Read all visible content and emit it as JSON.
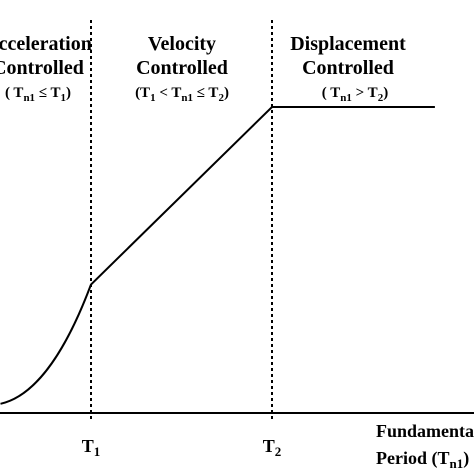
{
  "chart_data": {
    "type": "line",
    "title": "",
    "xlabel": "",
    "ylabel": "",
    "x_axis_label_lines": [
      "Fundamental",
      "Period (T"
    ],
    "x_axis_label_subscript": "n1",
    "x_axis_label_close": ")",
    "regions": [
      {
        "title_lines": [
          "Acceleration",
          "Controlled"
        ],
        "condition": {
          "open": "( T",
          "sub1": "n1",
          "rel": " ≤ T",
          "sub2": "1",
          "close": ")"
        }
      },
      {
        "title_lines": [
          "Velocity",
          "Controlled"
        ],
        "condition": {
          "open": "(T",
          "sub1": "1",
          "rel": " < T",
          "sub2": "n1",
          "rel2": " ≤ T",
          "sub3": "2",
          "close": ")"
        }
      },
      {
        "title_lines": [
          "Displacement",
          "Controlled"
        ],
        "condition": {
          "open": "( T",
          "sub1": "n1",
          "rel": " > T",
          "sub2": "2",
          "close": ")"
        }
      }
    ],
    "ticks": [
      {
        "main": "T",
        "sub": "1",
        "x": 1
      },
      {
        "main": "T",
        "sub": "2",
        "x": 3
      }
    ],
    "series": [
      {
        "x": [
          0,
          0.25,
          0.5,
          0.75,
          1,
          3,
          4.8
        ],
        "y": [
          0.03,
          0.075,
          0.14,
          0.27,
          0.42,
          1.0,
          1.0
        ]
      }
    ],
    "xlim": [
      0,
      4.8
    ],
    "ylim": [
      0,
      1.2
    ],
    "grid": false
  }
}
